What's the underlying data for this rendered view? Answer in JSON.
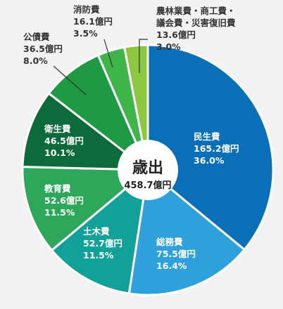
{
  "chart_data": {
    "type": "pie",
    "center_title": "歳出",
    "center_total": "458.7億円",
    "slices": [
      {
        "name": "民生費",
        "amount": "165.2億円",
        "percent_label": "36.0%",
        "value": 36.0,
        "color": "#0a6fb9",
        "label_color": "#ffffff"
      },
      {
        "name": "総務費",
        "amount": "75.5億円",
        "percent_label": "16.4%",
        "value": 16.4,
        "color": "#2ea1dc",
        "label_color": "#ffffff"
      },
      {
        "name": "土木費",
        "amount": "52.7億円",
        "percent_label": "11.5%",
        "value": 11.5,
        "color": "#12a199",
        "label_color": "#ffffff"
      },
      {
        "name": "教育費",
        "amount": "52.6億円",
        "percent_label": "11.5%",
        "value": 11.5,
        "color": "#2da85a",
        "label_color": "#ffffff"
      },
      {
        "name": "衛生費",
        "amount": "46.5億円",
        "percent_label": "10.1%",
        "value": 10.1,
        "color": "#0d6a3a",
        "label_color": "#ffffff"
      },
      {
        "name": "公債費",
        "amount": "36.5億円",
        "percent_label": "8.0%",
        "value": 8.0,
        "color": "#1d9a42",
        "label_color": "#333333"
      },
      {
        "name": "消防費",
        "amount": "16.1億円",
        "percent_label": "3.5%",
        "value": 3.5,
        "color": "#3fb549",
        "label_color": "#333333"
      },
      {
        "name_lines": [
          "農林業費・商工費・",
          "議会費・災害復旧費"
        ],
        "amount": "13.6億円",
        "percent_label": "3.0%",
        "value": 3.0,
        "color": "#8dc63f",
        "label_color": "#333333"
      }
    ]
  }
}
